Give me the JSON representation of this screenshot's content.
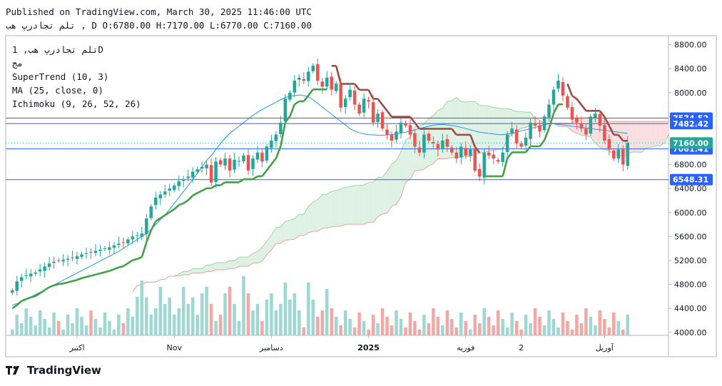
{
  "header": {
    "published": "Published on TradingView.com, March 30, 2025 11:46:00 UTC",
    "ohlc": "تلم تجادرپ هب , D O:6780.00 H:7170.00 L:6770.00 C:7160.00"
  },
  "legend": {
    "symbol": "تلم تجادرپ هب, 1D",
    "exchange": "مج",
    "indicators": [
      "SuperTrend (10, 3)",
      "MA (25, close, 0)",
      "Ichimoku (9, 26, 52, 26)"
    ]
  },
  "brand": "TradingView",
  "colors": {
    "up": "#26a69a",
    "down": "#ef5350",
    "volUp": "#9fd8d3",
    "volDown": "#f4a8a6",
    "stUp": "#43a047",
    "stDown": "#9c4a45",
    "ma": "#2196f3",
    "hline": "#2962ff",
    "cloudBull": "#dff1e3",
    "cloudBear": "#fbdede"
  },
  "chart_data": {
    "type": "candlestick",
    "ylim": [
      3950,
      8950
    ],
    "y_ticks": [
      4000,
      4400,
      4800,
      5200,
      5600,
      6000,
      6400,
      6800,
      7200,
      7600,
      8000,
      8400,
      8800
    ],
    "x_labels": [
      {
        "text": "اکتبر",
        "i": 14
      },
      {
        "text": "Nov",
        "i": 35
      },
      {
        "text": "دسامبر",
        "i": 56
      },
      {
        "text": "2025",
        "i": 77
      },
      {
        "text": "فوریه",
        "i": 98
      },
      {
        "text": "2",
        "i": 110
      },
      {
        "text": "آوریل",
        "i": 128
      }
    ],
    "levels": [
      {
        "value": 7574.52,
        "label": "7574.52"
      },
      {
        "value": 7482.42,
        "label": "7482.42"
      },
      {
        "value": 7061.41,
        "label": "7061.41"
      },
      {
        "value": 6548.31,
        "label": "6548.31"
      }
    ],
    "last_price": {
      "value": 7160.0,
      "label": "7160.00"
    },
    "closes": [
      4700,
      4850,
      4920,
      4950,
      4980,
      5000,
      5050,
      5100,
      5150,
      5180,
      5200,
      5210,
      5230,
      5250,
      5270,
      5300,
      5320,
      5340,
      5360,
      5380,
      5400,
      5420,
      5450,
      5480,
      5500,
      5550,
      5600,
      5620,
      5650,
      5900,
      6100,
      6250,
      6300,
      6350,
      6400,
      6450,
      6520,
      6550,
      6600,
      6680,
      6720,
      6760,
      6800,
      6500,
      6850,
      6800,
      6900,
      6700,
      6880,
      6860,
      6950,
      6700,
      6900,
      7000,
      6850,
      7100,
      7200,
      7300,
      7500,
      7900,
      8000,
      8200,
      8250,
      8200,
      8350,
      8450,
      8200,
      8100,
      8250,
      8050,
      8150,
      7750,
      7900,
      8050,
      7800,
      7650,
      7900,
      7850,
      7500,
      7650,
      7400,
      7300,
      7200,
      7350,
      7500,
      7450,
      7300,
      7100,
      7000,
      7300,
      7200,
      7150,
      7050,
      7200,
      7100,
      7000,
      6900,
      7100,
      6950,
      7050,
      6700,
      6600,
      7000,
      6950,
      6900,
      6850,
      7000,
      7300,
      7400,
      7150,
      7100,
      7250,
      7500,
      7450,
      7350,
      7600,
      7800,
      8050,
      8200,
      7950,
      7750,
      7550,
      7500,
      7400,
      7300,
      7600,
      7650,
      7450,
      7200,
      7050,
      6900,
      7050,
      6800,
      7160
    ],
    "ma_values": [
      4450,
      4480,
      4510,
      4550,
      4590,
      4630,
      4670,
      4710,
      4750,
      4790,
      4830,
      4870,
      4910,
      4950,
      4990,
      5030,
      5070,
      5110,
      5150,
      5190,
      5230,
      5270,
      5310,
      5350,
      5400,
      5450,
      5500,
      5550,
      5600,
      5650,
      5720,
      5800,
      5880,
      5960,
      6050,
      6150,
      6250,
      6350,
      6450,
      6550,
      6650,
      6760,
      6870,
      6950,
      7050,
      7150,
      7240,
      7320,
      7380,
      7440,
      7500,
      7560,
      7620,
      7670,
      7720,
      7760,
      7800,
      7840,
      7880,
      7920,
      7940,
      7950,
      7960,
      7950,
      7930,
      7880,
      7820,
      7760,
      7700,
      7640,
      7580,
      7520,
      7460,
      7400,
      7360,
      7330,
      7310,
      7300,
      7295,
      7290,
      7290,
      7295,
      7300,
      7310,
      7325,
      7340,
      7360,
      7380,
      7400,
      7420,
      7440,
      7455,
      7465,
      7470,
      7460,
      7450,
      7440,
      7420,
      7400,
      7380,
      7360,
      7340,
      7330,
      7320,
      7310,
      7300,
      7300,
      7310,
      7320,
      7340,
      7360,
      7380,
      7400,
      7420,
      7440,
      7460,
      7480,
      7480,
      7470,
      7460,
      7450,
      7440,
      7430,
      7420,
      7410,
      7400,
      7390,
      7380,
      7370,
      7360,
      7350,
      7340,
      7330,
      7320
    ]
  }
}
